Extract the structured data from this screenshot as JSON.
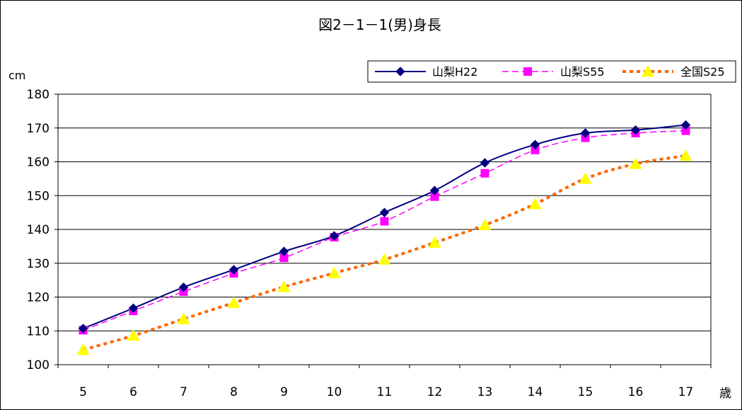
{
  "chart_data": {
    "type": "line",
    "title": "図2－1－1(男)身長",
    "y_unit": "cm",
    "x_unit": "歳",
    "categories": [
      "5",
      "6",
      "7",
      "8",
      "9",
      "10",
      "11",
      "12",
      "13",
      "14",
      "15",
      "16",
      "17"
    ],
    "ylim": [
      100,
      180
    ],
    "ytick_values": [
      100,
      110,
      120,
      130,
      140,
      150,
      160,
      170,
      180
    ],
    "grid": true,
    "legend_position": "top-right",
    "series": [
      {
        "name": "山梨H22",
        "values": [
          110.7,
          116.7,
          122.9,
          128.1,
          133.5,
          138.1,
          145.0,
          151.5,
          159.7,
          165.1,
          168.5,
          169.4,
          170.9
        ],
        "color": "#000080",
        "marker": "diamond",
        "line_style": "solid"
      },
      {
        "name": "山梨S55",
        "values": [
          110.2,
          115.9,
          121.6,
          127.0,
          131.6,
          137.7,
          142.4,
          149.7,
          156.6,
          163.5,
          167.1,
          168.5,
          169.2
        ],
        "color": "#ff00ff",
        "marker": "square",
        "line_style": "dashed"
      },
      {
        "name": "全国S25",
        "values": [
          104.4,
          108.6,
          113.5,
          118.3,
          123.0,
          127.1,
          131.1,
          136.1,
          141.3,
          147.5,
          155.0,
          159.4,
          161.8
        ],
        "color": "#ff6600",
        "marker_color": "#ffff00",
        "marker": "triangle",
        "line_style": "dotted"
      }
    ]
  }
}
